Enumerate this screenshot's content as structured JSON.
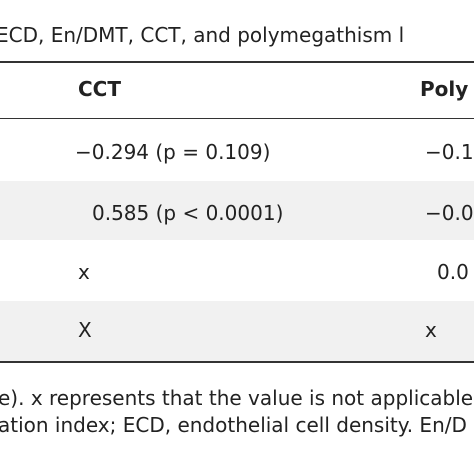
{
  "caption": "ECD, En/DMT, CCT, and polymegathism l",
  "table": {
    "header": [
      "CCT",
      "Poly"
    ],
    "rows": [
      [
        "−0.294 (p = 0.109)",
        "−0.1"
      ],
      [
        "0.585 (p < 0.0001)",
        "−0.0"
      ],
      [
        "x",
        "0.0"
      ],
      [
        "X",
        "x"
      ]
    ]
  },
  "footnote": [
    "e). x represents that the value is not applicable",
    "ation index; ECD, endothelial cell density. En/D"
  ]
}
